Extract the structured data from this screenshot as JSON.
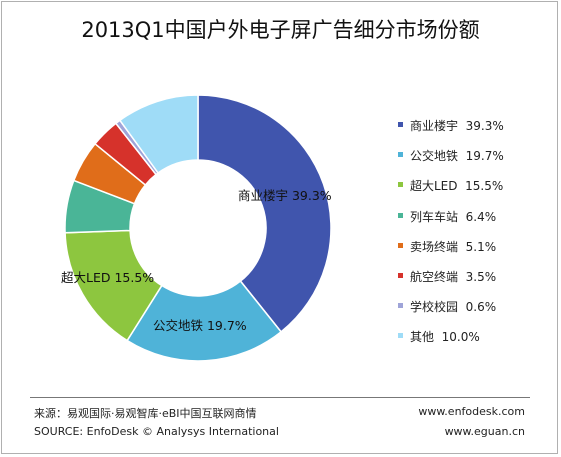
{
  "chart_data": {
    "type": "pie",
    "title": "2013Q1中国户外电子屏广告细分市场份额",
    "categories": [
      "商业楼宇",
      "公交地铁",
      "超大LED",
      "列车车站",
      "卖场终端",
      "航空终端",
      "学校校园",
      "其他"
    ],
    "values": [
      39.3,
      19.7,
      15.5,
      6.4,
      5.1,
      3.5,
      0.6,
      10.0
    ],
    "value_labels": [
      "39.3%",
      "19.7%",
      "15.5%",
      "6.4%",
      "5.1%",
      "3.5%",
      "0.6%",
      "10.0%"
    ],
    "colors": [
      "#4055ad",
      "#4fb3d8",
      "#8dc63f",
      "#4ab597",
      "#e06d1a",
      "#d6322b",
      "#9fa4d8",
      "#9fdcf7"
    ],
    "donut": true,
    "legend_position": "right",
    "slice_labels_shown": [
      "商业楼宇  39.3%",
      "公交地铁  19.7%",
      "超大LED  15.5%"
    ]
  },
  "footer": {
    "source_cn": "来源：易观国际·易观智库·eBI中国互联网商情",
    "source_en": "SOURCE: EnfoDesk © Analysys International",
    "url1": "www.enfodesk.com",
    "url2": "www.eguan.cn"
  }
}
